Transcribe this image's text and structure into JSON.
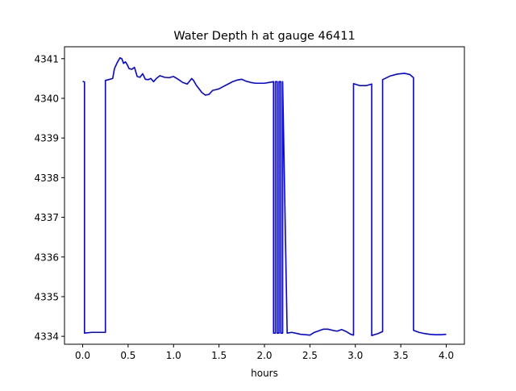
{
  "chart_data": {
    "type": "line",
    "title": "Water Depth h at gauge 46411",
    "xlabel": "hours",
    "ylabel": "",
    "xlim": [
      -0.2,
      4.2
    ],
    "ylim": [
      4333.8,
      4341.3
    ],
    "xticks": [
      0.0,
      0.5,
      1.0,
      1.5,
      2.0,
      2.5,
      3.0,
      3.5,
      4.0
    ],
    "xtick_labels": [
      "0.0",
      "0.5",
      "1.0",
      "1.5",
      "2.0",
      "2.5",
      "3.0",
      "3.5",
      "4.0"
    ],
    "yticks": [
      4334,
      4335,
      4336,
      4337,
      4338,
      4339,
      4340,
      4341
    ],
    "ytick_labels": [
      "4334",
      "4335",
      "4336",
      "4337",
      "4338",
      "4339",
      "4340",
      "4341"
    ],
    "grid": false,
    "series": [
      {
        "color": "#0000ff",
        "x": [
          0.0,
          0.02,
          0.02,
          0.1,
          0.25,
          0.25,
          0.33,
          0.35,
          0.38,
          0.41,
          0.43,
          0.45,
          0.47,
          0.49,
          0.51,
          0.54,
          0.57,
          0.6,
          0.63,
          0.66,
          0.69,
          0.72,
          0.75,
          0.78,
          0.81,
          0.85,
          0.9,
          0.95,
          1.0,
          1.05,
          1.1,
          1.15,
          1.2,
          1.22,
          1.25,
          1.28,
          1.31,
          1.35,
          1.39,
          1.43,
          1.47,
          1.5,
          1.55,
          1.6,
          1.65,
          1.7,
          1.75,
          1.8,
          1.85,
          1.9,
          1.95,
          2.0,
          2.05,
          2.1,
          2.1,
          2.12,
          2.12,
          2.14,
          2.14,
          2.16,
          2.16,
          2.18,
          2.18,
          2.2,
          2.2,
          2.25,
          2.3,
          2.4,
          2.5,
          2.55,
          2.6,
          2.65,
          2.7,
          2.75,
          2.8,
          2.85,
          2.9,
          2.95,
          2.98,
          2.98,
          3.05,
          3.12,
          3.18,
          3.18,
          3.25,
          3.3,
          3.3,
          3.38,
          3.46,
          3.54,
          3.6,
          3.64,
          3.64,
          3.7,
          3.76,
          3.82,
          3.88,
          3.94,
          4.0
        ],
        "y": [
          4340.43,
          4340.41,
          4334.08,
          4334.1,
          4334.1,
          4340.45,
          4340.5,
          4340.75,
          4340.9,
          4341.02,
          4341.0,
          4340.88,
          4340.92,
          4340.85,
          4340.75,
          4340.73,
          4340.78,
          4340.55,
          4340.53,
          4340.62,
          4340.48,
          4340.47,
          4340.5,
          4340.42,
          4340.5,
          4340.57,
          4340.53,
          4340.52,
          4340.55,
          4340.48,
          4340.4,
          4340.36,
          4340.5,
          4340.45,
          4340.33,
          4340.24,
          4340.15,
          4340.08,
          4340.1,
          4340.2,
          4340.22,
          4340.24,
          4340.3,
          4340.36,
          4340.42,
          4340.46,
          4340.48,
          4340.43,
          4340.4,
          4340.38,
          4340.38,
          4340.38,
          4340.4,
          4340.42,
          4334.08,
          4334.08,
          4340.42,
          4340.42,
          4334.08,
          4334.08,
          4340.42,
          4340.42,
          4334.08,
          4334.08,
          4340.42,
          4334.08,
          4334.1,
          4334.05,
          4334.03,
          4334.1,
          4334.14,
          4334.18,
          4334.18,
          4334.15,
          4334.13,
          4334.17,
          4334.12,
          4334.05,
          4334.03,
          4340.37,
          4340.32,
          4340.32,
          4340.36,
          4334.02,
          4334.07,
          4334.12,
          4340.47,
          4340.56,
          4340.61,
          4340.63,
          4340.6,
          4340.52,
          4334.15,
          4334.1,
          4334.07,
          4334.05,
          4334.04,
          4334.04,
          4334.05
        ]
      }
    ]
  }
}
